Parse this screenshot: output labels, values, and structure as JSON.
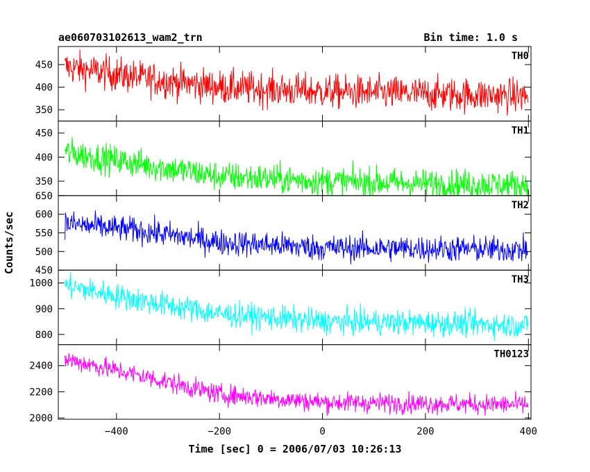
{
  "header": {
    "title": "ae060703102613_wam2_trn",
    "bin_time": "Bin time: 1.0 s"
  },
  "axes": {
    "xlabel": "Time [sec] 0 = 2006/07/03 10:26:13",
    "ylabel": "Counts/sec"
  },
  "chart_data": {
    "type": "line",
    "x_range": [
      -513,
      405
    ],
    "x_ticks": [
      -400,
      -200,
      0,
      200,
      400
    ],
    "x_tick_labels": [
      "−400",
      "−200",
      "0",
      "200",
      "400"
    ],
    "xlabel": "Time [sec] 0 = 2006/07/03 10:26:13",
    "ylabel": "Counts/sec",
    "panels": [
      {
        "name": "TH0",
        "color": "#ff0000",
        "ylim": [
          325,
          490
        ],
        "ticks": [
          350,
          400,
          450
        ],
        "trend": [
          [
            -500,
            445
          ],
          [
            -350,
            420
          ],
          [
            -200,
            400
          ],
          [
            0,
            390
          ],
          [
            200,
            385
          ],
          [
            400,
            380
          ]
        ],
        "noise": 27
      },
      {
        "name": "TH1",
        "color": "#00ff00",
        "ylim": [
          320,
          475
        ],
        "ticks": [
          350,
          400,
          450
        ],
        "trend": [
          [
            -500,
            410
          ],
          [
            -350,
            385
          ],
          [
            -200,
            360
          ],
          [
            0,
            350
          ],
          [
            200,
            345
          ],
          [
            400,
            342
          ]
        ],
        "noise": 22
      },
      {
        "name": "TH2",
        "color": "#0000ff",
        "ylim": [
          450,
          650
        ],
        "ticks": [
          450,
          500,
          550,
          600,
          650
        ],
        "trend": [
          [
            -500,
            575
          ],
          [
            -350,
            555
          ],
          [
            -200,
            525
          ],
          [
            0,
            510
          ],
          [
            200,
            508
          ],
          [
            400,
            505
          ]
        ],
        "noise": 25
      },
      {
        "name": "TH3",
        "color": "#00ffff",
        "ylim": [
          760,
          1050
        ],
        "ticks": [
          800,
          900,
          1000
        ],
        "trend": [
          [
            -500,
            990
          ],
          [
            -350,
            930
          ],
          [
            -200,
            880
          ],
          [
            0,
            850
          ],
          [
            200,
            845
          ],
          [
            400,
            835
          ]
        ],
        "noise": 35
      },
      {
        "name": "TH0123",
        "color": "#ff00ff",
        "ylim": [
          1990,
          2560
        ],
        "ticks": [
          2000,
          2200,
          2400
        ],
        "trend": [
          [
            -500,
            2450
          ],
          [
            -350,
            2320
          ],
          [
            -200,
            2180
          ],
          [
            0,
            2120
          ],
          [
            200,
            2110
          ],
          [
            400,
            2100
          ]
        ],
        "noise": 55
      }
    ]
  }
}
